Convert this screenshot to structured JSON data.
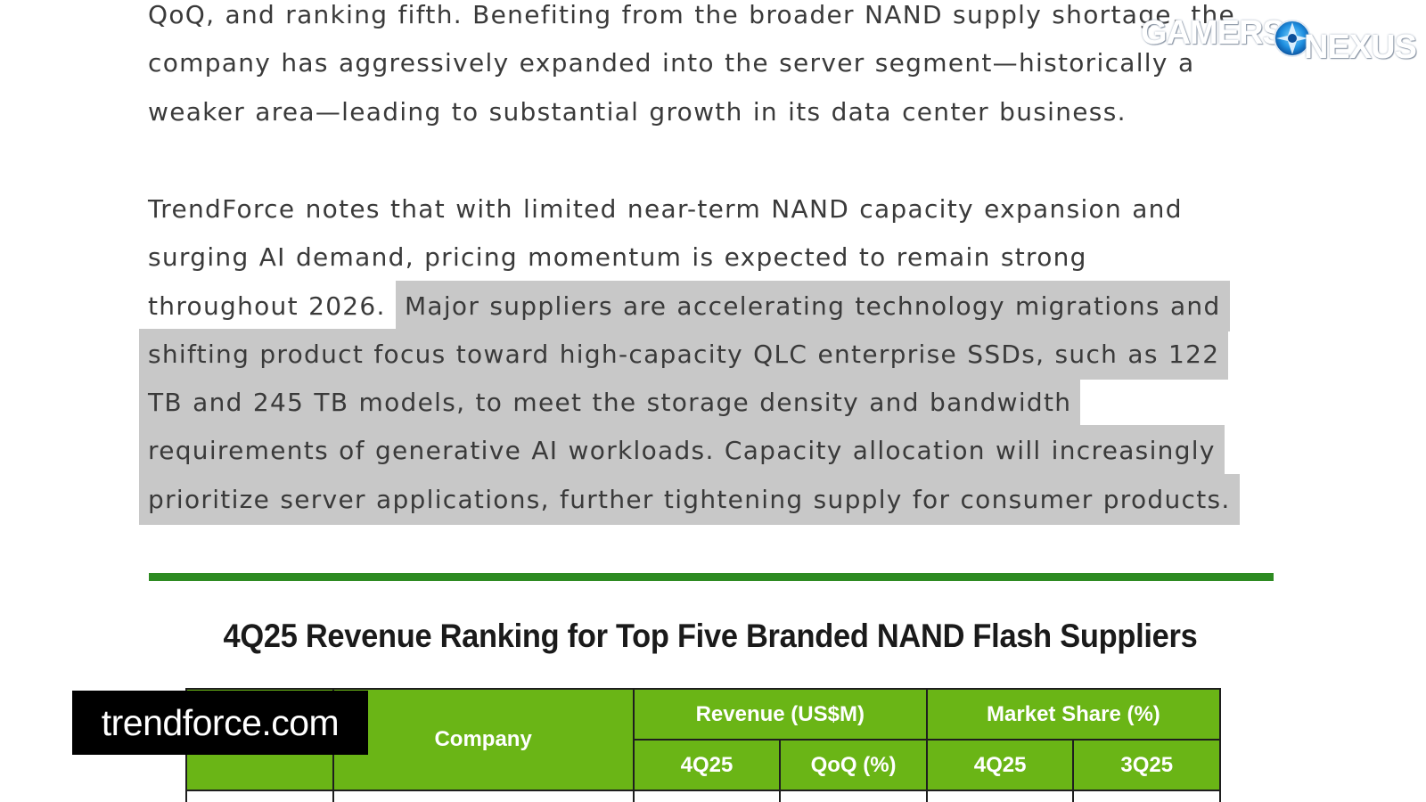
{
  "article": {
    "para1_lines": [
      "QoQ, and ranking fifth. Benefiting from the broader NAND supply shortage, the",
      "company has aggressively expanded into the server segment—historically a",
      "weaker area—leading to substantial growth in its data center business."
    ],
    "para2_line1": "TrendForce notes that with limited near-term NAND capacity expansion and",
    "para2_line2": "surging AI demand, pricing momentum is expected to remain strong",
    "para2_line3_plain": "throughout 2026.",
    "para2_line3_highlight": "Major suppliers are accelerating technology migrations and",
    "para2_line4": "shifting product focus toward high-capacity QLC enterprise SSDs, such as 122",
    "para2_line5": "TB and 245 TB models, to meet the storage density and bandwidth",
    "para2_line6": "requirements of generative AI workloads. Capacity allocation will increasingly",
    "para2_line7": "prioritize server applications, further tightening supply for consumer products."
  },
  "chart": {
    "title": "4Q25 Revenue Ranking for Top Five Branded NAND Flash Suppliers",
    "header_company": "Company",
    "header_revenue": "Revenue (US$M)",
    "header_market_share": "Market Share (%)",
    "sub_4q25_rev": "4Q25",
    "sub_qoq": "QoQ (%)",
    "sub_4q25_share": "4Q25",
    "sub_3q25_share": "3Q25"
  },
  "overlay": {
    "source_label": "trendforce.com",
    "logo_left": "GAMERS",
    "logo_right": "NEXUS"
  },
  "colors": {
    "table_header": "#6ab516",
    "rule": "#2e8b22",
    "highlight": "#c8c8c8"
  }
}
